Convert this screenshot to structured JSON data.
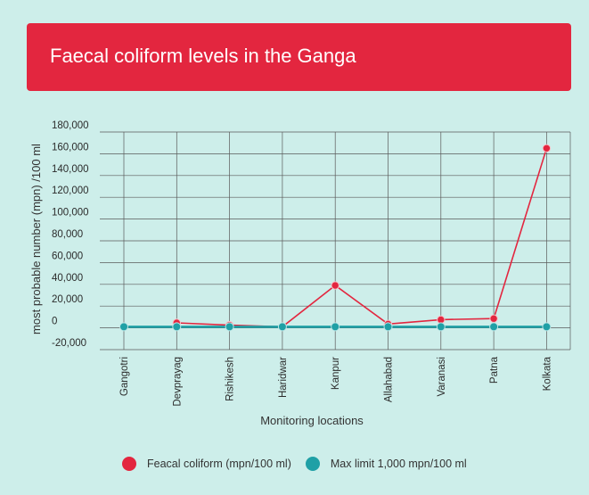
{
  "title": "Faecal coliform levels in the Ganga",
  "chart_data": {
    "type": "line",
    "categories": [
      "Gangotri",
      "Devprayag",
      "Rishikesh",
      "Haridwar",
      "Kanpur",
      "Allahabad",
      "Varanasi",
      "Patna",
      "Kolkata"
    ],
    "series": [
      {
        "name": "Feacal coliform (mpn/100 ml)",
        "color": "#e3263f",
        "values": [
          null,
          4600,
          2500,
          1000,
          39000,
          3500,
          7500,
          8500,
          165000
        ]
      },
      {
        "name": "Max limit 1,000 mpn/100 ml",
        "color": "#1fa0a6",
        "values": [
          1000,
          1000,
          1000,
          1000,
          1000,
          1000,
          1000,
          1000,
          1000
        ]
      }
    ],
    "xlabel": "Monitoring locations",
    "ylabel": "most probable number (mpn) /100 ml",
    "ylim": [
      -20000,
      180000
    ],
    "yticks": [
      -20000,
      0,
      20000,
      40000,
      60000,
      80000,
      100000,
      120000,
      140000,
      160000,
      180000
    ],
    "ytick_labels": [
      "-20,000",
      "0",
      "20,000",
      "40,000",
      "60,000",
      "80,000",
      "100,000",
      "120,000",
      "140,000",
      "160,000",
      "180,000"
    ],
    "grid": true,
    "legend_position": "bottom"
  }
}
